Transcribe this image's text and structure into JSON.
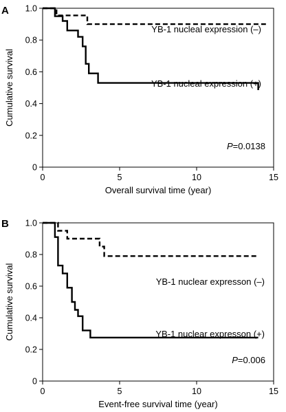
{
  "chart_data": [
    {
      "type": "line",
      "panel": "A",
      "xlabel": "Overall survival time (year)",
      "ylabel": "Cumulative survival",
      "xlim": [
        0,
        15
      ],
      "ylim": [
        0,
        1.0
      ],
      "xticks": [
        "0",
        "5",
        "10",
        "15"
      ],
      "yticks": [
        "0",
        "0.2",
        "0.4",
        "0.6",
        "0.8",
        "1.0"
      ],
      "series": [
        {
          "name": "YB-1 nucleal expression (–)",
          "style": "dashed",
          "color": "#000000",
          "x": [
            0.9,
            1.3,
            1.3,
            2.9,
            2.9,
            14.5
          ],
          "y": [
            0.955,
            0.955,
            0.955,
            0.9,
            0.9,
            0.9
          ]
        },
        {
          "name": "YB-1 nucleal expression (+)",
          "style": "solid",
          "color": "#000000",
          "x": [
            0.8,
            1.3,
            1.6,
            2.3,
            2.6,
            2.8,
            3.0,
            3.6,
            14.0
          ],
          "y": [
            0.95,
            0.92,
            0.86,
            0.82,
            0.76,
            0.65,
            0.59,
            0.53,
            0.485
          ]
        }
      ],
      "annotation": {
        "p_symbol": "P",
        "p_value": "=0.0138"
      }
    },
    {
      "type": "line",
      "panel": "B",
      "xlabel": "Event-free survival time (year)",
      "ylabel": "Cumulative survival",
      "xlim": [
        0,
        15
      ],
      "ylim": [
        0,
        1.0
      ],
      "xticks": [
        "0",
        "5",
        "10",
        "15"
      ],
      "yticks": [
        "0",
        "0.2",
        "0.4",
        "0.6",
        "0.8",
        "1.0"
      ],
      "series": [
        {
          "name": "YB-1 nuclear expresson (–)",
          "style": "dashed",
          "color": "#000000",
          "x": [
            1.0,
            1.6,
            3.7,
            4.0,
            14.0
          ],
          "y": [
            0.95,
            0.9,
            0.85,
            0.79,
            0.79
          ]
        },
        {
          "name": "YB-1 nuclear expresson (+)",
          "style": "solid",
          "color": "#000000",
          "x": [
            0.8,
            1.0,
            1.3,
            1.6,
            1.9,
            2.1,
            2.3,
            2.6,
            3.1,
            14.0
          ],
          "y": [
            0.91,
            0.73,
            0.68,
            0.59,
            0.5,
            0.45,
            0.41,
            0.32,
            0.275,
            0.275
          ]
        }
      ],
      "annotation": {
        "p_symbol": "P",
        "p_value": "=0.006"
      }
    }
  ]
}
